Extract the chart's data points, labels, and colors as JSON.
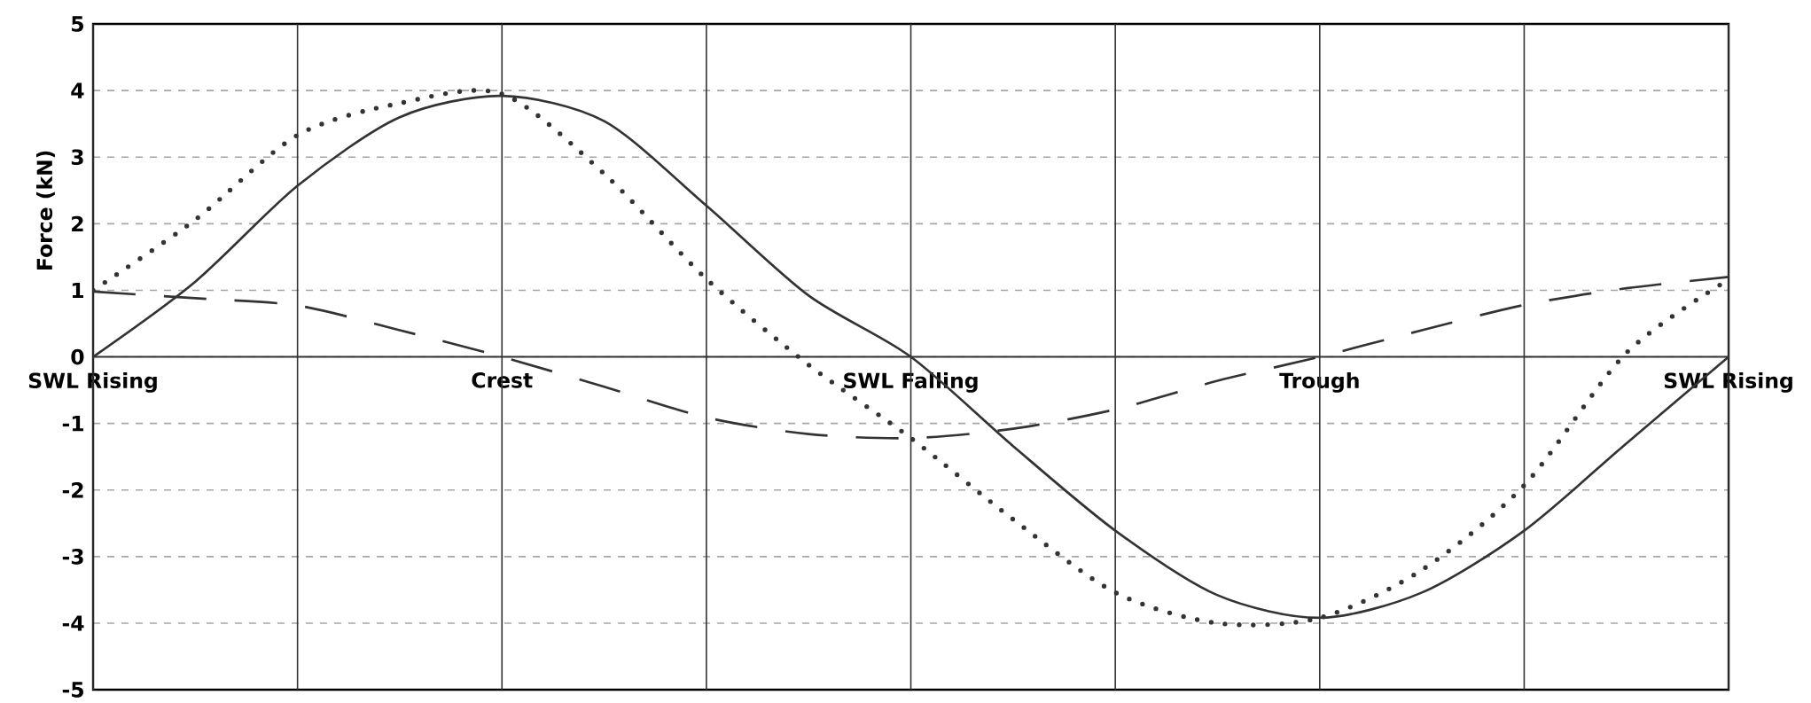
{
  "chart_data": {
    "type": "line",
    "ylabel": "Force (kN)",
    "categories": [
      "SWL Rising",
      null,
      null,
      null,
      "Crest",
      null,
      null,
      null,
      "SWL Falling",
      null,
      null,
      null,
      "Trough",
      null,
      null,
      null,
      "SWL Rising"
    ],
    "ylim": [
      -5,
      5
    ],
    "yticks": [
      -5,
      -4,
      -3,
      -2,
      -1,
      0,
      1,
      2,
      3,
      4,
      5
    ],
    "grid": true,
    "series": [
      {
        "color": "#333333",
        "line_style": "solid",
        "values": [
          0,
          1.13,
          2.57,
          3.6,
          3.92,
          3.54,
          2.27,
          0.92,
          0,
          -1.34,
          -2.61,
          -3.58,
          -3.92,
          -3.54,
          -2.61,
          -1.3,
          0
        ]
      },
      {
        "color": "#333333",
        "line_style": "dotted",
        "values": [
          1.0,
          2.06,
          3.33,
          3.81,
          3.95,
          2.75,
          1.17,
          -0.12,
          -1.22,
          -2.44,
          -3.54,
          -4.0,
          -3.92,
          -3.2,
          -1.93,
          0.06,
          1.16
        ]
      },
      {
        "color": "#333333",
        "line_style": "dashed",
        "values": [
          0.98,
          0.88,
          0.77,
          0.4,
          0,
          -0.45,
          -0.91,
          -1.16,
          -1.22,
          -1.08,
          -0.79,
          -0.36,
          0,
          0.4,
          0.78,
          1.03,
          1.2
        ]
      }
    ]
  }
}
